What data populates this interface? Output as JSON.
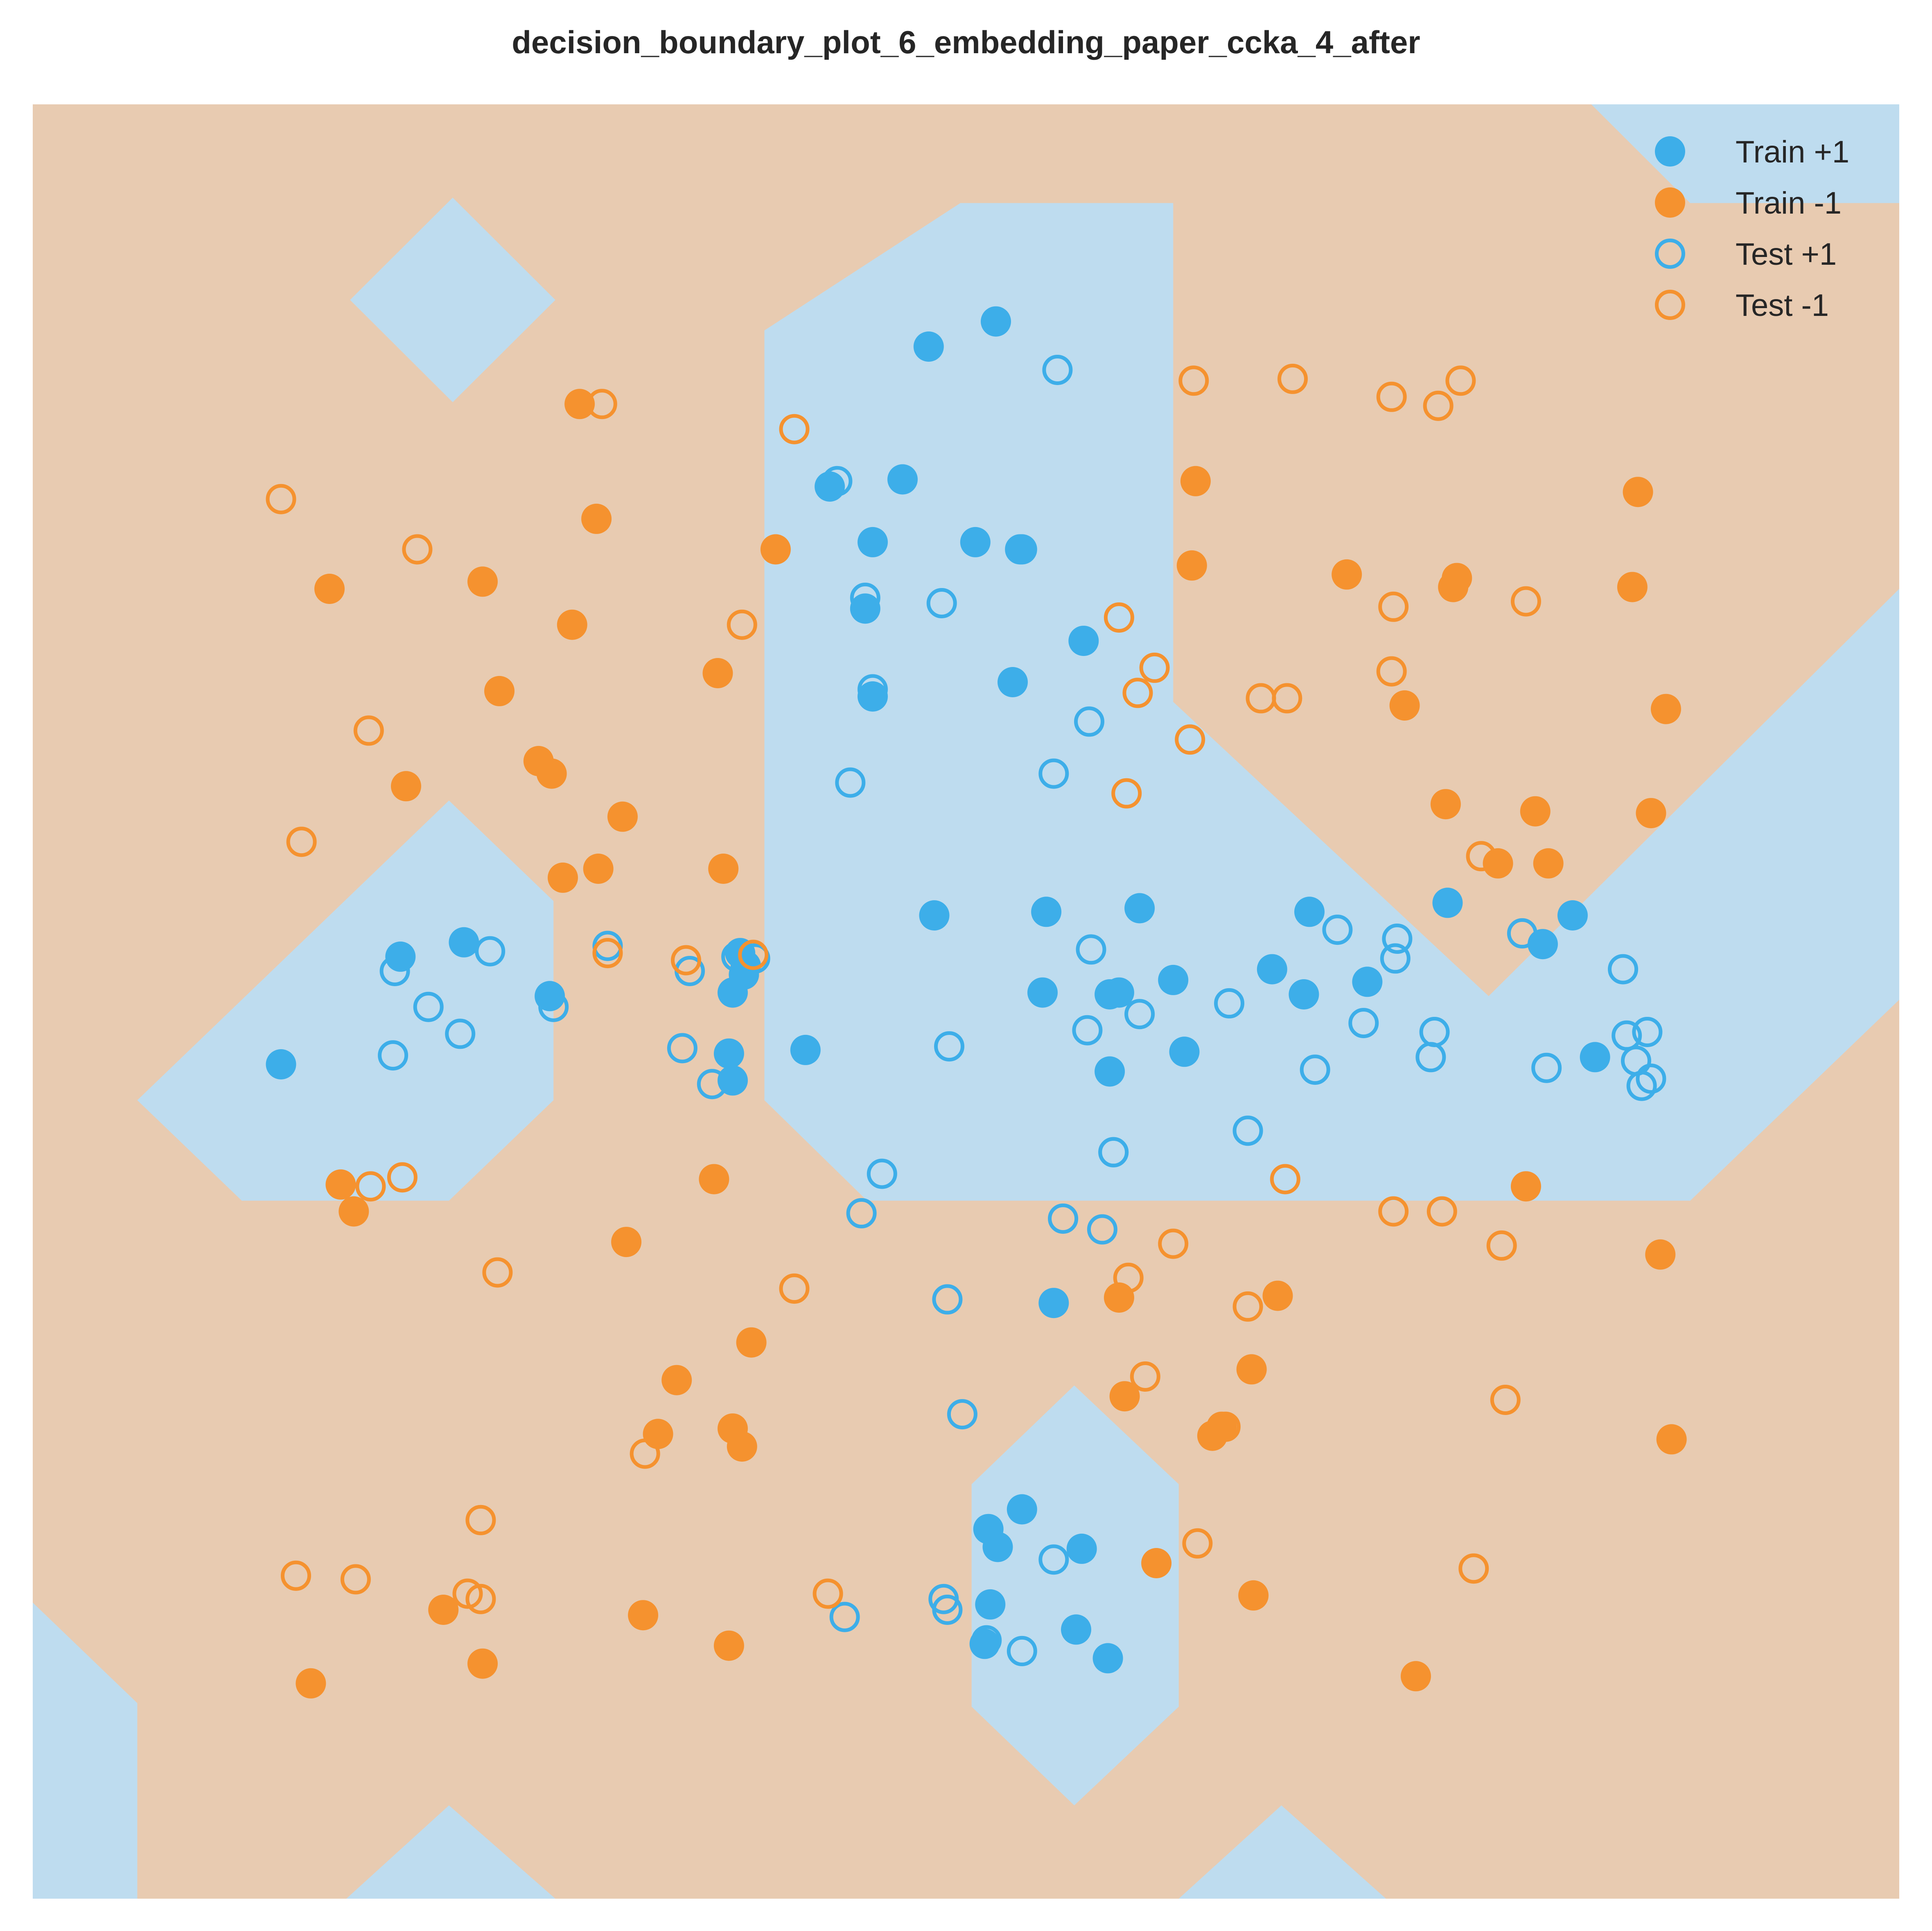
{
  "chart_data": {
    "type": "scatter",
    "title": "decision_boundary_plot_6_embedding_paper_ccka_4_after",
    "xlabel": "",
    "ylabel": "",
    "xlim": [
      0,
      1
    ],
    "ylim": [
      0,
      1
    ],
    "grid": false,
    "axes_visible": false,
    "legend_position": "top-right",
    "colors": {
      "positive": "#3daee9",
      "negative": "#f5922f",
      "region_positive": "#bedcef",
      "region_negative": "#e8cbb1"
    },
    "regions_positive": [
      [
        [
          0.392,
          0.874
        ],
        [
          0.392,
          0.445
        ],
        [
          0.447,
          0.389
        ],
        [
          0.888,
          0.389
        ],
        [
          1.0,
          0.501
        ],
        [
          1.0,
          0.73
        ],
        [
          0.78,
          0.503
        ],
        [
          0.611,
          0.667
        ],
        [
          0.611,
          0.945
        ],
        [
          0.497,
          0.945
        ],
        [
          0.392,
          0.874
        ]
      ],
      [
        [
          0.056,
          0.445
        ],
        [
          0.112,
          0.389
        ],
        [
          0.223,
          0.389
        ],
        [
          0.279,
          0.445
        ],
        [
          0.279,
          0.556
        ],
        [
          0.223,
          0.612
        ],
        [
          0.056,
          0.445
        ]
      ],
      [
        [
          0.17,
          0.891
        ],
        [
          0.225,
          0.834
        ],
        [
          0.28,
          0.891
        ],
        [
          0.225,
          0.948
        ],
        [
          0.17,
          0.891
        ]
      ],
      [
        [
          0.503,
          0.231
        ],
        [
          0.558,
          0.286
        ],
        [
          0.614,
          0.231
        ],
        [
          0.614,
          0.107
        ],
        [
          0.558,
          0.052
        ],
        [
          0.503,
          0.107
        ],
        [
          0.503,
          0.231
        ]
      ],
      [
        [
          0.0,
          0.165
        ],
        [
          0.056,
          0.109
        ],
        [
          0.056,
          0.0
        ],
        [
          0.0,
          0.0
        ]
      ],
      [
        [
          0.168,
          0.0
        ],
        [
          0.223,
          0.052
        ],
        [
          0.28,
          0.0
        ]
      ],
      [
        [
          0.614,
          0.0
        ],
        [
          0.669,
          0.052
        ],
        [
          0.725,
          0.0
        ]
      ],
      [
        [
          0.835,
          1.0
        ],
        [
          0.888,
          0.945
        ],
        [
          1.0,
          0.945
        ],
        [
          1.0,
          1.0
        ]
      ]
    ],
    "series": [
      {
        "name": "Train +1",
        "marker": "filled",
        "color": "#3daee9",
        "points": [
          [
            0.48,
            0.865
          ],
          [
            0.516,
            0.879
          ],
          [
            0.466,
            0.791
          ],
          [
            0.427,
            0.787
          ],
          [
            0.45,
            0.756
          ],
          [
            0.505,
            0.756
          ],
          [
            0.53,
            0.752
          ],
          [
            0.446,
            0.719
          ],
          [
            0.563,
            0.701
          ],
          [
            0.525,
            0.678
          ],
          [
            0.45,
            0.67
          ],
          [
            0.483,
            0.548
          ],
          [
            0.543,
            0.55
          ],
          [
            0.593,
            0.552
          ],
          [
            0.231,
            0.533
          ],
          [
            0.197,
            0.525
          ],
          [
            0.379,
            0.527
          ],
          [
            0.382,
            0.52
          ],
          [
            0.381,
            0.515
          ],
          [
            0.375,
            0.505
          ],
          [
            0.414,
            0.473
          ],
          [
            0.277,
            0.503
          ],
          [
            0.541,
            0.505
          ],
          [
            0.582,
            0.505
          ],
          [
            0.611,
            0.512
          ],
          [
            0.664,
            0.518
          ],
          [
            0.684,
            0.55
          ],
          [
            0.758,
            0.555
          ],
          [
            0.681,
            0.504
          ],
          [
            0.715,
            0.511
          ],
          [
            0.825,
            0.548
          ],
          [
            0.809,
            0.532
          ],
          [
            0.837,
            0.469
          ],
          [
            0.577,
            0.461
          ],
          [
            0.617,
            0.472
          ],
          [
            0.577,
            0.504
          ],
          [
            0.373,
            0.471
          ],
          [
            0.375,
            0.456
          ],
          [
            0.133,
            0.465
          ],
          [
            0.547,
            0.332
          ],
          [
            0.53,
            0.217
          ],
          [
            0.512,
            0.206
          ],
          [
            0.562,
            0.195
          ],
          [
            0.517,
            0.196
          ],
          [
            0.513,
            0.164
          ],
          [
            0.559,
            0.15
          ],
          [
            0.51,
            0.142
          ],
          [
            0.576,
            0.134
          ]
        ]
      },
      {
        "name": "Train -1",
        "marker": "filled",
        "color": "#f5922f",
        "points": [
          [
            0.293,
            0.833
          ],
          [
            0.302,
            0.769
          ],
          [
            0.398,
            0.752
          ],
          [
            0.159,
            0.73
          ],
          [
            0.241,
            0.734
          ],
          [
            0.289,
            0.71
          ],
          [
            0.25,
            0.673
          ],
          [
            0.367,
            0.683
          ],
          [
            0.271,
            0.634
          ],
          [
            0.278,
            0.627
          ],
          [
            0.2,
            0.62
          ],
          [
            0.316,
            0.603
          ],
          [
            0.303,
            0.574
          ],
          [
            0.284,
            0.569
          ],
          [
            0.37,
            0.574
          ],
          [
            0.623,
            0.79
          ],
          [
            0.621,
            0.743
          ],
          [
            0.704,
            0.738
          ],
          [
            0.763,
            0.736
          ],
          [
            0.761,
            0.731
          ],
          [
            0.86,
            0.784
          ],
          [
            0.857,
            0.731
          ],
          [
            0.735,
            0.665
          ],
          [
            0.875,
            0.663
          ],
          [
            0.757,
            0.61
          ],
          [
            0.805,
            0.606
          ],
          [
            0.785,
            0.577
          ],
          [
            0.812,
            0.577
          ],
          [
            0.867,
            0.605
          ],
          [
            0.165,
            0.398
          ],
          [
            0.172,
            0.383
          ],
          [
            0.365,
            0.401
          ],
          [
            0.318,
            0.366
          ],
          [
            0.8,
            0.397
          ],
          [
            0.872,
            0.359
          ],
          [
            0.582,
            0.335
          ],
          [
            0.667,
            0.336
          ],
          [
            0.385,
            0.31
          ],
          [
            0.345,
            0.289
          ],
          [
            0.653,
            0.295
          ],
          [
            0.585,
            0.28
          ],
          [
            0.375,
            0.262
          ],
          [
            0.335,
            0.259
          ],
          [
            0.38,
            0.252
          ],
          [
            0.637,
            0.263
          ],
          [
            0.632,
            0.258
          ],
          [
            0.878,
            0.256
          ],
          [
            0.602,
            0.187
          ],
          [
            0.654,
            0.169
          ],
          [
            0.22,
            0.161
          ],
          [
            0.327,
            0.158
          ],
          [
            0.373,
            0.141
          ],
          [
            0.241,
            0.131
          ],
          [
            0.149,
            0.12
          ],
          [
            0.741,
            0.124
          ]
        ]
      },
      {
        "name": "Test +1",
        "marker": "hollow",
        "color": "#3daee9",
        "points": [
          [
            0.549,
            0.852
          ],
          [
            0.431,
            0.79
          ],
          [
            0.529,
            0.752
          ],
          [
            0.487,
            0.722
          ],
          [
            0.446,
            0.725
          ],
          [
            0.566,
            0.656
          ],
          [
            0.45,
            0.674
          ],
          [
            0.438,
            0.622
          ],
          [
            0.547,
            0.627
          ],
          [
            0.245,
            0.528
          ],
          [
            0.194,
            0.517
          ],
          [
            0.279,
            0.497
          ],
          [
            0.308,
            0.531
          ],
          [
            0.352,
            0.517
          ],
          [
            0.377,
            0.525
          ],
          [
            0.387,
            0.524
          ],
          [
            0.212,
            0.497
          ],
          [
            0.229,
            0.482
          ],
          [
            0.193,
            0.47
          ],
          [
            0.348,
            0.474
          ],
          [
            0.364,
            0.454
          ],
          [
            0.567,
            0.529
          ],
          [
            0.565,
            0.484
          ],
          [
            0.491,
            0.475
          ],
          [
            0.593,
            0.493
          ],
          [
            0.641,
            0.499
          ],
          [
            0.579,
            0.416
          ],
          [
            0.579,
            0.416
          ],
          [
            0.651,
            0.428
          ],
          [
            0.699,
            0.54
          ],
          [
            0.731,
            0.535
          ],
          [
            0.73,
            0.524
          ],
          [
            0.798,
            0.538
          ],
          [
            0.852,
            0.518
          ],
          [
            0.713,
            0.488
          ],
          [
            0.687,
            0.462
          ],
          [
            0.854,
            0.481
          ],
          [
            0.865,
            0.483
          ],
          [
            0.811,
            0.463
          ],
          [
            0.455,
            0.404
          ],
          [
            0.444,
            0.382
          ],
          [
            0.552,
            0.379
          ],
          [
            0.573,
            0.373
          ],
          [
            0.859,
            0.467
          ],
          [
            0.867,
            0.457
          ],
          [
            0.862,
            0.453
          ],
          [
            0.49,
            0.334
          ],
          [
            0.498,
            0.27
          ],
          [
            0.547,
            0.189
          ],
          [
            0.488,
            0.167
          ],
          [
            0.435,
            0.157
          ],
          [
            0.49,
            0.161
          ],
          [
            0.511,
            0.144
          ],
          [
            0.53,
            0.138
          ],
          [
            0.751,
            0.483
          ],
          [
            0.749,
            0.469
          ]
        ]
      },
      {
        "name": "Test -1",
        "marker": "hollow",
        "color": "#f5922f",
        "points": [
          [
            0.305,
            0.833
          ],
          [
            0.622,
            0.846
          ],
          [
            0.675,
            0.847
          ],
          [
            0.728,
            0.837
          ],
          [
            0.753,
            0.832
          ],
          [
            0.765,
            0.846
          ],
          [
            0.408,
            0.819
          ],
          [
            0.133,
            0.78
          ],
          [
            0.206,
            0.752
          ],
          [
            0.38,
            0.71
          ],
          [
            0.582,
            0.714
          ],
          [
            0.601,
            0.686
          ],
          [
            0.592,
            0.672
          ],
          [
            0.729,
            0.72
          ],
          [
            0.8,
            0.723
          ],
          [
            0.658,
            0.669
          ],
          [
            0.672,
            0.669
          ],
          [
            0.62,
            0.646
          ],
          [
            0.728,
            0.684
          ],
          [
            0.18,
            0.651
          ],
          [
            0.586,
            0.616
          ],
          [
            0.144,
            0.589
          ],
          [
            0.776,
            0.581
          ],
          [
            0.308,
            0.527
          ],
          [
            0.386,
            0.526
          ],
          [
            0.35,
            0.523
          ],
          [
            0.181,
            0.397
          ],
          [
            0.198,
            0.402
          ],
          [
            0.671,
            0.401
          ],
          [
            0.729,
            0.383
          ],
          [
            0.755,
            0.383
          ],
          [
            0.787,
            0.364
          ],
          [
            0.611,
            0.365
          ],
          [
            0.249,
            0.349
          ],
          [
            0.408,
            0.34
          ],
          [
            0.587,
            0.346
          ],
          [
            0.651,
            0.33
          ],
          [
            0.596,
            0.291
          ],
          [
            0.789,
            0.278
          ],
          [
            0.639,
            0.263
          ],
          [
            0.328,
            0.248
          ],
          [
            0.24,
            0.211
          ],
          [
            0.624,
            0.198
          ],
          [
            0.772,
            0.184
          ],
          [
            0.141,
            0.18
          ],
          [
            0.173,
            0.178
          ],
          [
            0.233,
            0.17
          ],
          [
            0.24,
            0.167
          ],
          [
            0.426,
            0.17
          ]
        ]
      }
    ]
  }
}
